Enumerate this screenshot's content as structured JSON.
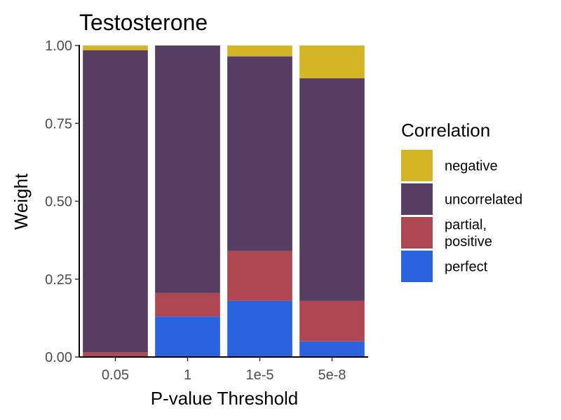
{
  "chart_data": {
    "type": "bar",
    "stacked": true,
    "title": "Testosterone",
    "xlabel": "P-value Threshold",
    "ylabel": "Weight",
    "ylim": [
      0,
      1
    ],
    "yticks": [
      "0.00",
      "0.25",
      "0.50",
      "0.75",
      "1.00"
    ],
    "categories": [
      "0.05",
      "1",
      "1e-5",
      "5e-8"
    ],
    "series": [
      {
        "name": "perfect",
        "color": "#2b63df",
        "values": [
          0.0,
          0.13,
          0.18,
          0.05
        ]
      },
      {
        "name": "partial, positive",
        "color": "#ae4751",
        "values": [
          0.015,
          0.075,
          0.16,
          0.13
        ]
      },
      {
        "name": "uncorrelated",
        "color": "#553e61",
        "values": [
          0.97,
          0.795,
          0.625,
          0.715
        ]
      },
      {
        "name": "negative",
        "color": "#d4b526",
        "values": [
          0.015,
          0.0,
          0.035,
          0.105
        ]
      }
    ],
    "legend": {
      "title": "Correlation",
      "position": "right",
      "order": [
        "negative",
        "uncorrelated",
        "partial, positive",
        "perfect"
      ]
    },
    "grid": false
  }
}
